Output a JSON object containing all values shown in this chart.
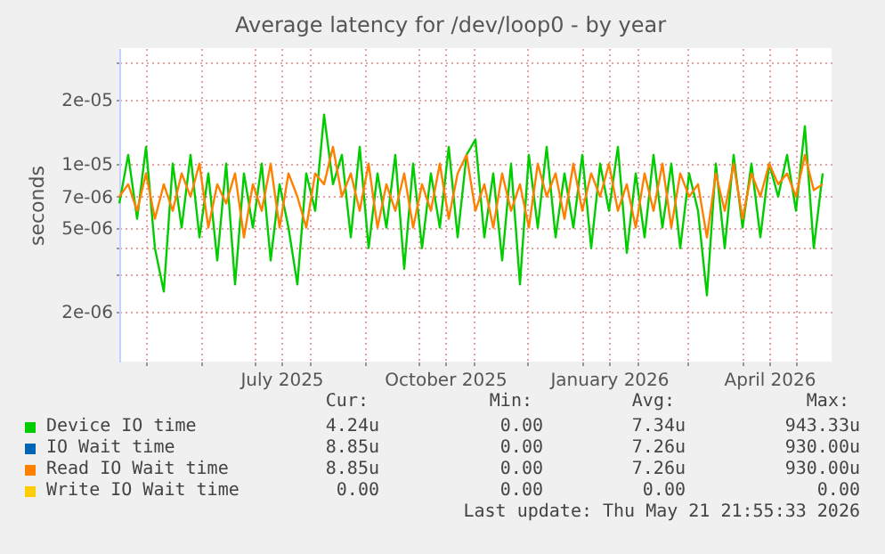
{
  "chart_data": {
    "type": "line",
    "title": "Average latency for /dev/loop0 - by year",
    "ylabel": "seconds",
    "x": [
      "2025-04-16",
      "2025-04-21",
      "2025-04-26",
      "2025-05-01",
      "2025-05-06",
      "2025-05-11",
      "2025-05-16",
      "2025-05-21",
      "2025-05-26",
      "2025-05-31",
      "2025-06-05",
      "2025-06-10",
      "2025-06-15",
      "2025-06-20",
      "2025-06-25",
      "2025-06-30",
      "2025-07-05",
      "2025-07-10",
      "2025-07-15",
      "2025-07-20",
      "2025-07-25",
      "2025-07-30",
      "2025-08-04",
      "2025-08-09",
      "2025-08-14",
      "2025-08-19",
      "2025-08-24",
      "2025-08-29",
      "2025-09-03",
      "2025-09-08",
      "2025-09-13",
      "2025-09-18",
      "2025-09-23",
      "2025-09-28",
      "2025-10-03",
      "2025-10-08",
      "2025-10-13",
      "2025-10-18",
      "2025-10-23",
      "2025-10-28",
      "2025-11-02",
      "2025-11-07",
      "2025-11-12",
      "2025-11-17",
      "2025-11-22",
      "2025-11-27",
      "2025-12-02",
      "2025-12-07",
      "2025-12-12",
      "2025-12-17",
      "2025-12-22",
      "2025-12-27",
      "2026-01-01",
      "2026-01-06",
      "2026-01-11",
      "2026-01-16",
      "2026-01-21",
      "2026-01-26",
      "2026-01-31",
      "2026-02-05",
      "2026-02-10",
      "2026-02-15",
      "2026-02-20",
      "2026-02-25",
      "2026-03-02",
      "2026-03-07",
      "2026-03-12",
      "2026-03-17",
      "2026-03-22",
      "2026-03-27",
      "2026-04-01",
      "2026-04-06",
      "2026-04-11",
      "2026-04-16",
      "2026-04-21",
      "2026-04-26",
      "2026-05-01",
      "2026-05-06",
      "2026-05-11",
      "2026-05-16"
    ],
    "series": [
      {
        "name": "Device IO time",
        "color": "#00cc00",
        "values": [
          6.5e-06,
          1.1e-05,
          5.5e-06,
          1.2e-05,
          4e-06,
          2.5e-06,
          1e-05,
          5e-06,
          1.1e-05,
          4.5e-06,
          9e-06,
          3.5e-06,
          1e-05,
          2.7e-06,
          9e-06,
          5e-06,
          1e-05,
          3.5e-06,
          8e-06,
          5e-06,
          2.7e-06,
          9e-06,
          6e-06,
          1.7e-05,
          8e-06,
          1.1e-05,
          4.5e-06,
          1.2e-05,
          4e-06,
          9e-06,
          5e-06,
          1.1e-05,
          3.2e-06,
          1e-05,
          4e-06,
          9e-06,
          5e-06,
          1.2e-05,
          4.5e-06,
          1.1e-05,
          1.3e-05,
          4.5e-06,
          9e-06,
          3.5e-06,
          1e-05,
          2.7e-06,
          1.1e-05,
          5e-06,
          1.2e-05,
          4.5e-06,
          9e-06,
          5e-06,
          1.1e-05,
          4e-06,
          1e-05,
          6e-06,
          1.2e-05,
          3.8e-06,
          9e-06,
          4.5e-06,
          1.1e-05,
          5e-06,
          1e-05,
          4e-06,
          9e-06,
          6e-06,
          2.4e-06,
          1e-05,
          4e-06,
          1.1e-05,
          5e-06,
          1e-05,
          4.5e-06,
          1e-05,
          7e-06,
          1.1e-05,
          6e-06,
          1.5e-05,
          4e-06,
          9e-06
        ]
      },
      {
        "name": "IO Wait time",
        "color": "#0066b3",
        "values": [
          null,
          null,
          null,
          null,
          null,
          null,
          null,
          null,
          null,
          null,
          null,
          null,
          null,
          null,
          null,
          null,
          null,
          null,
          null,
          null,
          null,
          null,
          null,
          null,
          null,
          null,
          null,
          null,
          null,
          null,
          null,
          null,
          null,
          null,
          null,
          null,
          null,
          null,
          null,
          null,
          null,
          null,
          null,
          null,
          null,
          null,
          null,
          null,
          null,
          null,
          null,
          null,
          null,
          null,
          null,
          null,
          null,
          null,
          null,
          null,
          null,
          null,
          null,
          null,
          null,
          null,
          null,
          null,
          null,
          null,
          null,
          null,
          null,
          null,
          null,
          null,
          null,
          null,
          null,
          null
        ]
      },
      {
        "name": "Read IO Wait time",
        "color": "#ff8000",
        "values": [
          7e-06,
          8e-06,
          6e-06,
          9e-06,
          5.5e-06,
          8e-06,
          6e-06,
          9e-06,
          7e-06,
          1e-05,
          5e-06,
          8e-06,
          6.5e-06,
          9e-06,
          4.5e-06,
          8e-06,
          6e-06,
          1e-05,
          5e-06,
          9e-06,
          7e-06,
          5e-06,
          9e-06,
          8e-06,
          1.2e-05,
          7e-06,
          9e-06,
          6e-06,
          1e-05,
          5e-06,
          8e-06,
          6e-06,
          9e-06,
          5e-06,
          8e-06,
          6e-06,
          1e-05,
          5.5e-06,
          9e-06,
          1.1e-05,
          6e-06,
          8e-06,
          5e-06,
          9e-06,
          6e-06,
          8e-06,
          5e-06,
          1e-05,
          7e-06,
          9e-06,
          5.5e-06,
          1e-05,
          6e-06,
          9e-06,
          7e-06,
          1e-05,
          6e-06,
          8e-06,
          5e-06,
          9e-06,
          6e-06,
          1e-05,
          5e-06,
          9e-06,
          7e-06,
          8e-06,
          4.5e-06,
          9e-06,
          6e-06,
          1e-05,
          5.5e-06,
          9e-06,
          7e-06,
          1e-05,
          8e-06,
          9e-06,
          7e-06,
          1.1e-05,
          7.5e-06,
          8e-06
        ]
      },
      {
        "name": "Write IO Wait time",
        "color": "#ffcc00",
        "values": [
          null,
          null,
          null,
          null,
          null,
          null,
          null,
          null,
          null,
          null,
          null,
          null,
          null,
          null,
          null,
          null,
          null,
          null,
          null,
          null,
          null,
          null,
          null,
          null,
          null,
          null,
          null,
          null,
          null,
          null,
          null,
          null,
          null,
          null,
          null,
          null,
          null,
          null,
          null,
          null,
          null,
          null,
          null,
          null,
          null,
          null,
          null,
          null,
          null,
          null,
          null,
          null,
          null,
          null,
          null,
          null,
          null,
          null,
          null,
          null,
          null,
          null,
          null,
          null,
          null,
          null,
          null,
          null,
          null,
          null,
          null,
          null,
          null,
          null,
          null,
          null,
          null,
          null,
          null,
          null
        ]
      }
    ],
    "xlim": [
      "2025-04-16",
      "2026-05-21"
    ],
    "xticks": [
      {
        "value": "2025-05-01",
        "label": null
      },
      {
        "value": "2025-06-01",
        "label": null
      },
      {
        "value": "2025-07-01",
        "label": null
      },
      {
        "value": "2025-07-16",
        "label": "July 2025"
      },
      {
        "value": "2025-08-01",
        "label": null
      },
      {
        "value": "2025-09-01",
        "label": null
      },
      {
        "value": "2025-10-01",
        "label": null
      },
      {
        "value": "2025-10-16",
        "label": "October 2025"
      },
      {
        "value": "2025-11-01",
        "label": null
      },
      {
        "value": "2025-12-01",
        "label": null
      },
      {
        "value": "2026-01-01",
        "label": null
      },
      {
        "value": "2026-01-16",
        "label": "January 2026"
      },
      {
        "value": "2026-02-01",
        "label": null
      },
      {
        "value": "2026-03-01",
        "label": null
      },
      {
        "value": "2026-04-01",
        "label": null
      },
      {
        "value": "2026-04-16",
        "label": "April 2026"
      },
      {
        "value": "2026-05-01",
        "label": null
      }
    ],
    "ylim": [
      1.17e-06,
      3.5e-05
    ],
    "yticks": [
      {
        "value": 2e-06,
        "label": "2e-06"
      },
      {
        "value": 3e-06,
        "label": null
      },
      {
        "value": 4e-06,
        "label": null
      },
      {
        "value": 5e-06,
        "label": "5e-06"
      },
      {
        "value": 7e-06,
        "label": "7e-06"
      },
      {
        "value": 1e-05,
        "label": "1e-05"
      },
      {
        "value": 2e-05,
        "label": "2e-05"
      },
      {
        "value": 3e-05,
        "label": null
      }
    ],
    "log": "y",
    "grid": true,
    "marker": "none",
    "line_style": "solid",
    "legend": "bottom",
    "annotations": [
      "Cur:",
      "Min:",
      "Avg:",
      "Max:",
      "4.24u",
      "0.00",
      "7.34u",
      "943.33u",
      "8.85u",
      "0.00",
      "7.26u",
      "930.00u",
      "8.85u",
      "0.00",
      "7.26u",
      "930.00u",
      "0.00",
      "0.00",
      "0.00",
      "0.00",
      "Last update: Thu May 21 21:55:33 2026"
    ]
  }
}
